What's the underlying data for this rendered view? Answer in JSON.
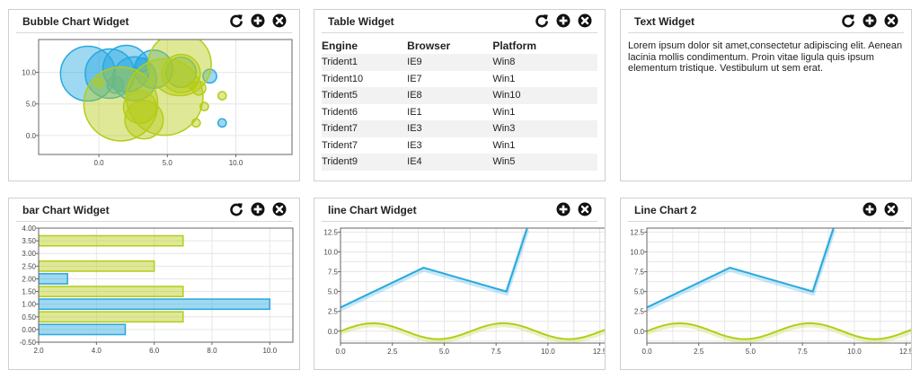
{
  "widgets": {
    "bubble": {
      "title": "Bubble Chart Widget",
      "tools": [
        "refresh-icon",
        "add-icon",
        "close-icon"
      ]
    },
    "table": {
      "title": "Table Widget",
      "tools": [
        "refresh-icon",
        "add-icon",
        "close-icon"
      ],
      "columns": [
        "Engine",
        "Browser",
        "Platform"
      ],
      "rows": [
        [
          "Trident1",
          "IE9",
          "Win8"
        ],
        [
          "Trident10",
          "IE7",
          "Win1"
        ],
        [
          "Trident5",
          "IE8",
          "Win10"
        ],
        [
          "Trident6",
          "IE1",
          "Win1"
        ],
        [
          "Trident7",
          "IE3",
          "Win3"
        ],
        [
          "Trident7",
          "IE3",
          "Win1"
        ],
        [
          "Trident9",
          "IE4",
          "Win5"
        ]
      ]
    },
    "text": {
      "title": "Text Widget",
      "tools": [
        "refresh-icon",
        "add-icon",
        "close-icon"
      ],
      "body": "Lorem ipsum dolor sit amet,consectetur adipiscing elit. Aenean lacinia mollis condimentum. Proin vitae ligula quis ipsum elementum tristique. Vestibulum ut sem erat."
    },
    "bar": {
      "title": "bar Chart Widget",
      "tools": [
        "refresh-icon",
        "add-icon",
        "close-icon"
      ]
    },
    "line1": {
      "title": "line Chart Widget",
      "tools": [
        "add-icon",
        "close-icon"
      ]
    },
    "line2": {
      "title": "Line Chart 2",
      "tools": [
        "add-icon",
        "close-icon"
      ]
    }
  },
  "colors": {
    "blue": "#29a8df",
    "green": "#b5cc18",
    "grid": "#e0e0e0"
  },
  "chart_data": [
    {
      "id": "bubble",
      "type": "scatter",
      "title": "",
      "xlim": [
        -4.4,
        14.1
      ],
      "ylim": [
        -3,
        15.2
      ],
      "xticks": [
        0,
        5,
        10
      ],
      "xtick_labels": [
        "0.0",
        "5.0",
        "10.0"
      ],
      "yticks": [
        0,
        5,
        10
      ],
      "ytick_labels": [
        "0.0",
        "5.0",
        "10.0"
      ],
      "series": [
        {
          "color": "blue",
          "points": [
            [
              -0.8,
              9.8,
              2.0
            ],
            [
              0.8,
              9.8,
              1.8
            ],
            [
              2.0,
              10.6,
              1.7
            ],
            [
              2.6,
              9.0,
              1.6
            ],
            [
              4.0,
              10.5,
              1.4
            ],
            [
              6.0,
              10.0,
              1.1
            ],
            [
              8.1,
              9.4,
              0.5
            ],
            [
              9.0,
              2.0,
              0.3
            ],
            [
              1.2,
              8.0,
              0.6
            ],
            [
              3.2,
              11.2,
              0.5
            ]
          ]
        },
        {
          "color": "green",
          "points": [
            [
              5.9,
              11.3,
              2.3
            ],
            [
              4.8,
              6.1,
              2.8
            ],
            [
              1.6,
              5.0,
              2.7
            ],
            [
              3.3,
              2.5,
              1.4
            ],
            [
              3.0,
              4.5,
              1.2
            ],
            [
              6.0,
              9.8,
              1.4
            ],
            [
              7.3,
              7.5,
              0.5
            ],
            [
              7.7,
              4.6,
              0.3
            ],
            [
              9.0,
              6.3,
              0.3
            ],
            [
              7.1,
              2.0,
              0.3
            ],
            [
              0.0,
              8.4,
              0.3
            ],
            [
              6.8,
              8.0,
              0.3
            ]
          ]
        }
      ]
    },
    {
      "id": "bar",
      "type": "bar",
      "title": "",
      "orientation": "horizontal",
      "xlim": [
        2,
        10.8
      ],
      "ylim": [
        -0.5,
        4.0
      ],
      "xticks": [
        2,
        4,
        6,
        8,
        10
      ],
      "xtick_labels": [
        "2.0",
        "4.0",
        "6.0",
        "8.0",
        "10.0"
      ],
      "yticks": [
        -0.5,
        0,
        0.5,
        1,
        1.5,
        2,
        2.5,
        3,
        3.5,
        4
      ],
      "ytick_labels": [
        "-0.50",
        "0.00",
        "0.50",
        "1.00",
        "1.50",
        "2.00",
        "2.50",
        "3.00",
        "3.50",
        "4.00"
      ],
      "series": [
        {
          "color": "blue",
          "bars": [
            [
              0,
              5
            ],
            [
              1,
              10
            ],
            [
              2,
              3
            ]
          ]
        },
        {
          "color": "green",
          "bars": [
            [
              0.5,
              7
            ],
            [
              1.5,
              7
            ],
            [
              2.5,
              6
            ],
            [
              3.5,
              7
            ]
          ]
        }
      ]
    },
    {
      "id": "line1",
      "type": "line",
      "title": "",
      "xlim": [
        0,
        13.6
      ],
      "ylim": [
        -1.5,
        13.0
      ],
      "xticks": [
        0,
        2.5,
        5,
        7.5,
        10,
        12.5
      ],
      "xtick_labels": [
        "0.0",
        "2.5",
        "5.0",
        "7.5",
        "10.0",
        "12.5"
      ],
      "yticks": [
        0,
        2.5,
        5,
        7.5,
        10,
        12.5
      ],
      "ytick_labels": [
        "0.0",
        "2.5",
        "5.0",
        "7.5",
        "10.0",
        "12.5"
      ],
      "series": [
        {
          "color": "blue",
          "points": [
            [
              0,
              3
            ],
            [
              4,
              8
            ],
            [
              8,
              5
            ],
            [
              9,
              13
            ]
          ]
        },
        {
          "color": "green",
          "function": "sin",
          "range": [
            0,
            13.6
          ]
        }
      ]
    },
    {
      "id": "line2",
      "type": "line",
      "title": "",
      "xlim": [
        0,
        13.6
      ],
      "ylim": [
        -1.5,
        13.0
      ],
      "xticks": [
        0,
        2.5,
        5,
        7.5,
        10,
        12.5
      ],
      "xtick_labels": [
        "0.0",
        "2.5",
        "5.0",
        "7.5",
        "10.0",
        "12.5"
      ],
      "yticks": [
        0,
        2.5,
        5,
        7.5,
        10,
        12.5
      ],
      "ytick_labels": [
        "0.0",
        "2.5",
        "5.0",
        "7.5",
        "10.0",
        "12.5"
      ],
      "series": [
        {
          "color": "blue",
          "points": [
            [
              0,
              3
            ],
            [
              4,
              8
            ],
            [
              8,
              5
            ],
            [
              9,
              13
            ]
          ]
        },
        {
          "color": "green",
          "function": "sin",
          "range": [
            0,
            13.6
          ]
        }
      ]
    }
  ]
}
